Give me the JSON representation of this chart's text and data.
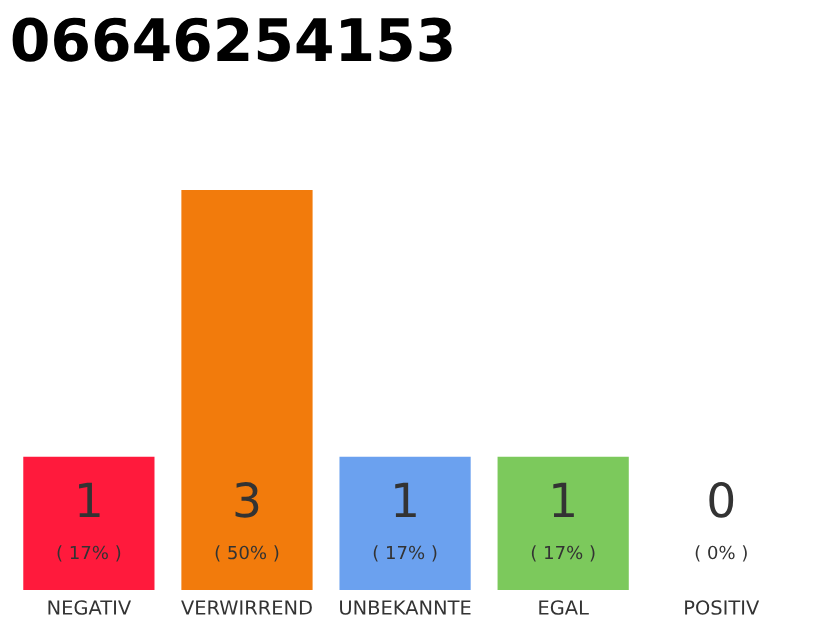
{
  "chart_data": {
    "type": "bar",
    "title": "06646254153",
    "categories": [
      "NEGATIV",
      "VERWIRREND",
      "UNBEKANNTE",
      "EGAL",
      "POSITIV"
    ],
    "values": [
      1,
      3,
      1,
      1,
      0
    ],
    "colors": [
      "#ff1a3c",
      "#f27b0c",
      "#6ba1ef",
      "#7cc95c",
      "#cccccc"
    ],
    "value_labels": [
      "1\n( 17% )",
      "3\n( 50% )",
      "1\n( 17% )",
      "1\n( 17% )",
      "0\n( 0% )"
    ],
    "ylim": [
      0,
      3
    ],
    "tick_labels": "x",
    "grid": false,
    "legend": false
  }
}
